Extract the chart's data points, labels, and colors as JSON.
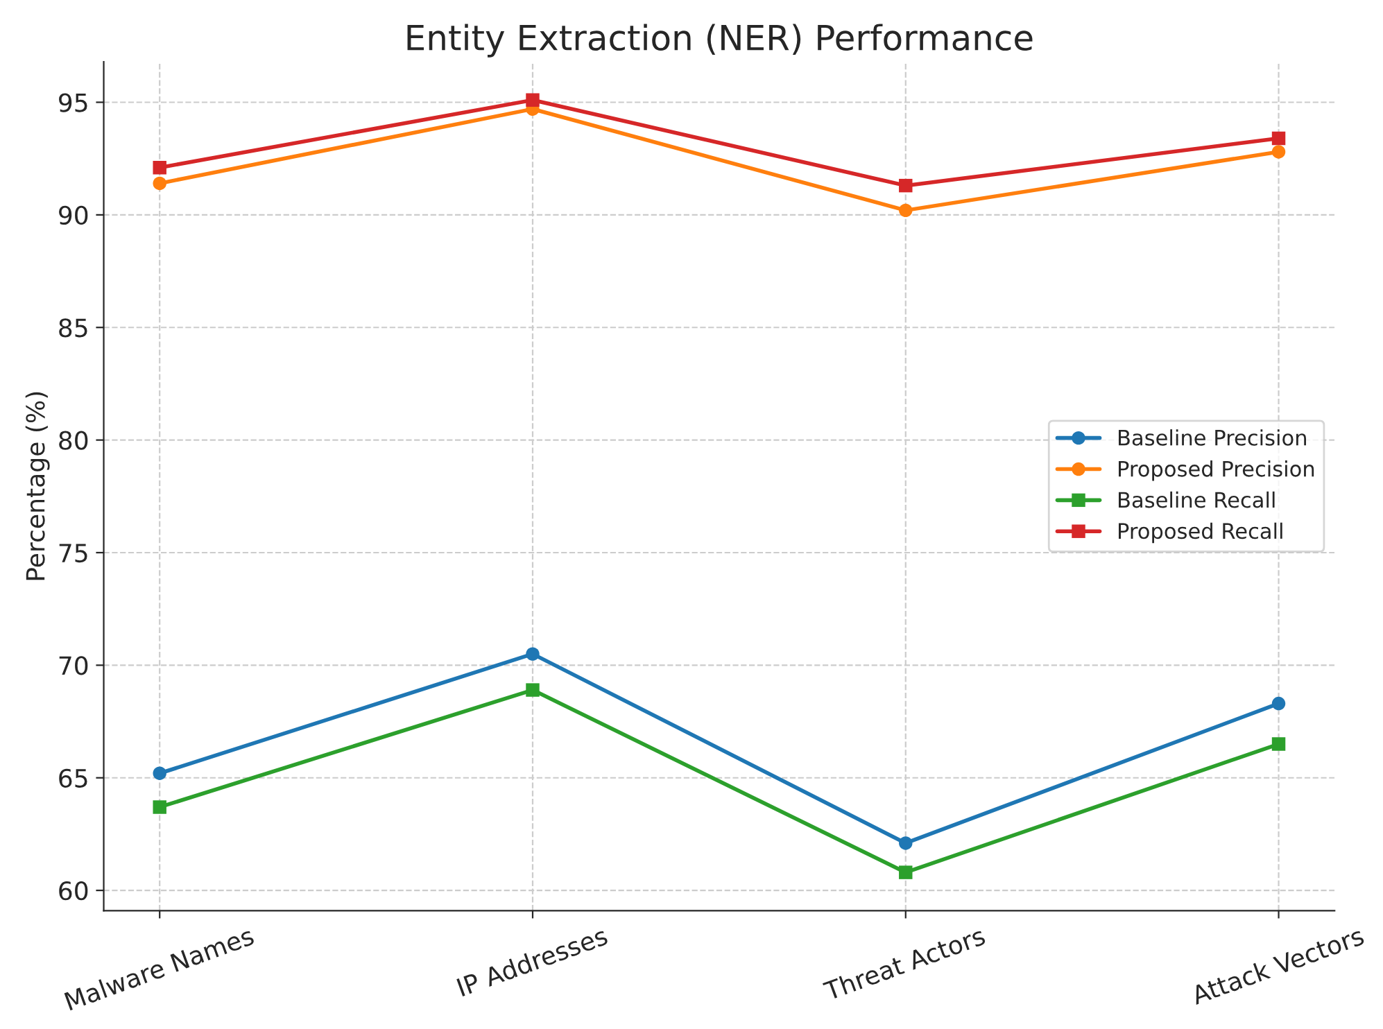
{
  "chart_data": {
    "type": "line",
    "title": "Entity Extraction (NER) Performance",
    "ylabel": "Percentage (%)",
    "categories": [
      "Malware Names",
      "IP Addresses",
      "Threat Actors",
      "Attack Vectors"
    ],
    "series": [
      {
        "name": "Baseline Precision",
        "color": "#1f77b4",
        "marker": "circle",
        "values": [
          65.2,
          70.5,
          62.1,
          68.3
        ]
      },
      {
        "name": "Proposed Precision",
        "color": "#ff7f0e",
        "marker": "circle",
        "values": [
          91.4,
          94.7,
          90.2,
          92.8
        ]
      },
      {
        "name": "Baseline Recall",
        "color": "#2ca02c",
        "marker": "square",
        "values": [
          63.7,
          68.9,
          60.8,
          66.5
        ]
      },
      {
        "name": "Proposed Recall",
        "color": "#d62728",
        "marker": "square",
        "values": [
          92.1,
          95.1,
          91.3,
          93.4
        ]
      }
    ],
    "ylim": [
      59.1,
      96.8
    ],
    "yticks": [
      60,
      65,
      70,
      75,
      80,
      85,
      90,
      95
    ],
    "grid": true,
    "legend": "center right",
    "line_style": "solid"
  }
}
